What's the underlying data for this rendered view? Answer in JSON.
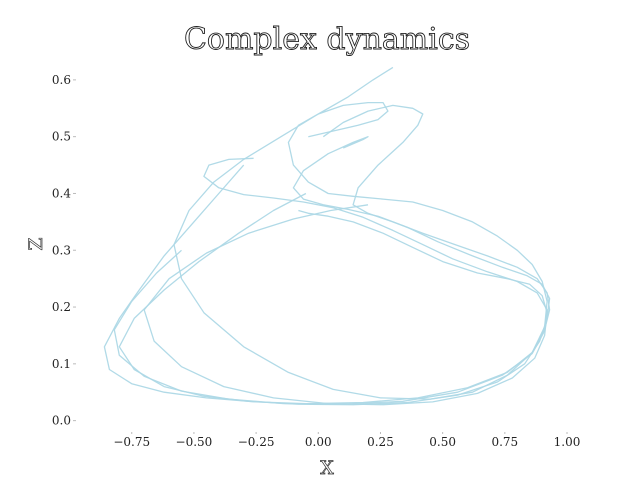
{
  "chart_data": {
    "type": "line",
    "title": "Complex dynamics",
    "xlabel": "X",
    "ylabel": "Z",
    "xlim": [
      -0.95,
      1.02
    ],
    "ylim": [
      -0.02,
      0.635
    ],
    "xticks": [
      -0.75,
      -0.5,
      -0.25,
      0.0,
      0.25,
      0.5,
      0.75,
      1.0
    ],
    "xtick_labels": [
      "−0.75",
      "−0.50",
      "−0.25",
      "0.00",
      "0.25",
      "0.50",
      "0.75",
      "1.00"
    ],
    "yticks": [
      0.0,
      0.1,
      0.2,
      0.3,
      0.4,
      0.5,
      0.6
    ],
    "ytick_labels": [
      "0.0",
      "0.1",
      "0.2",
      "0.3",
      "0.4",
      "0.5",
      "0.6"
    ],
    "grid": false,
    "color": "#add8e6",
    "series": [
      {
        "x": [
          0.3,
          0.22,
          0.12,
          0.0,
          -0.15,
          -0.3,
          -0.42,
          -0.52,
          -0.58,
          -0.55,
          -0.46,
          -0.3,
          -0.12,
          0.06,
          0.25,
          0.45,
          0.62,
          0.76,
          0.86,
          0.91,
          0.92,
          0.9,
          0.86,
          0.8,
          0.72,
          0.62,
          0.5,
          0.38,
          0.26,
          0.14,
          0.04,
          -0.04,
          -0.1,
          -0.12,
          -0.08,
          0.0,
          0.1,
          0.2,
          0.26,
          0.28,
          0.24,
          0.16,
          0.06,
          -0.04
        ],
        "z": [
          0.622,
          0.6,
          0.57,
          0.54,
          0.5,
          0.46,
          0.42,
          0.37,
          0.31,
          0.25,
          0.19,
          0.13,
          0.085,
          0.055,
          0.04,
          0.038,
          0.05,
          0.08,
          0.12,
          0.165,
          0.21,
          0.245,
          0.275,
          0.3,
          0.325,
          0.35,
          0.37,
          0.385,
          0.39,
          0.395,
          0.4,
          0.42,
          0.45,
          0.49,
          0.52,
          0.54,
          0.555,
          0.56,
          0.56,
          0.545,
          0.53,
          0.52,
          0.51,
          0.5
        ]
      },
      {
        "x": [
          -0.3,
          -0.4,
          -0.5,
          -0.62,
          -0.72,
          -0.8,
          -0.86,
          -0.84,
          -0.75,
          -0.62,
          -0.45,
          -0.25,
          -0.05,
          0.18,
          0.4,
          0.6,
          0.76,
          0.86,
          0.91,
          0.93,
          0.92,
          0.88,
          0.8,
          0.68,
          0.55,
          0.42,
          0.3,
          0.2,
          0.14,
          0.16,
          0.24,
          0.34,
          0.4,
          0.42,
          0.38,
          0.3,
          0.2,
          0.1,
          0.02
        ],
        "z": [
          0.45,
          0.4,
          0.35,
          0.29,
          0.23,
          0.18,
          0.13,
          0.09,
          0.065,
          0.05,
          0.04,
          0.033,
          0.03,
          0.032,
          0.04,
          0.058,
          0.085,
          0.12,
          0.16,
          0.195,
          0.225,
          0.25,
          0.27,
          0.29,
          0.31,
          0.33,
          0.35,
          0.365,
          0.38,
          0.41,
          0.45,
          0.49,
          0.52,
          0.54,
          0.55,
          0.555,
          0.545,
          0.525,
          0.5
        ]
      },
      {
        "x": [
          -0.05,
          -0.18,
          -0.32,
          -0.48,
          -0.62,
          -0.74,
          -0.8,
          -0.74,
          -0.62,
          -0.46,
          -0.28,
          -0.08,
          0.14,
          0.36,
          0.56,
          0.72,
          0.83,
          0.89,
          0.92,
          0.93,
          0.9,
          0.84,
          0.74,
          0.62,
          0.48,
          0.36,
          0.24,
          0.12,
          0.02,
          -0.06,
          -0.1,
          -0.06,
          0.04,
          0.14,
          0.2,
          0.18,
          0.1
        ],
        "z": [
          0.4,
          0.37,
          0.33,
          0.28,
          0.23,
          0.18,
          0.13,
          0.09,
          0.06,
          0.043,
          0.034,
          0.029,
          0.028,
          0.032,
          0.045,
          0.068,
          0.1,
          0.14,
          0.18,
          0.215,
          0.24,
          0.255,
          0.27,
          0.29,
          0.315,
          0.34,
          0.36,
          0.372,
          0.38,
          0.39,
          0.41,
          0.44,
          0.47,
          0.49,
          0.5,
          0.495,
          0.48
        ]
      },
      {
        "x": [
          0.2,
          0.05,
          -0.1,
          -0.28,
          -0.45,
          -0.6,
          -0.7,
          -0.66,
          -0.55,
          -0.38,
          -0.18,
          0.04,
          0.26,
          0.46,
          0.64,
          0.78,
          0.87,
          0.91,
          0.92,
          0.9,
          0.85,
          0.76,
          0.64,
          0.5,
          0.38,
          0.26,
          0.14,
          0.04,
          -0.04,
          -0.08
        ],
        "z": [
          0.38,
          0.37,
          0.355,
          0.33,
          0.295,
          0.25,
          0.195,
          0.14,
          0.095,
          0.06,
          0.04,
          0.03,
          0.028,
          0.033,
          0.048,
          0.075,
          0.11,
          0.15,
          0.19,
          0.22,
          0.24,
          0.25,
          0.26,
          0.28,
          0.305,
          0.33,
          0.35,
          0.36,
          0.365,
          0.37
        ]
      },
      {
        "x": [
          -0.55,
          -0.65,
          -0.75,
          -0.82,
          -0.8,
          -0.7,
          -0.55,
          -0.36,
          -0.14,
          0.1,
          0.34,
          0.56,
          0.74,
          0.86,
          0.91,
          0.92,
          0.88,
          0.8,
          0.68,
          0.54,
          0.42,
          0.3,
          0.18,
          0.06,
          -0.06,
          -0.18,
          -0.3,
          -0.4,
          -0.46,
          -0.44,
          -0.36,
          -0.26
        ],
        "z": [
          0.3,
          0.26,
          0.21,
          0.16,
          0.115,
          0.078,
          0.052,
          0.038,
          0.03,
          0.029,
          0.034,
          0.05,
          0.08,
          0.118,
          0.158,
          0.195,
          0.225,
          0.245,
          0.262,
          0.285,
          0.31,
          0.335,
          0.358,
          0.375,
          0.385,
          0.392,
          0.398,
          0.41,
          0.43,
          0.45,
          0.46,
          0.462
        ]
      }
    ]
  }
}
